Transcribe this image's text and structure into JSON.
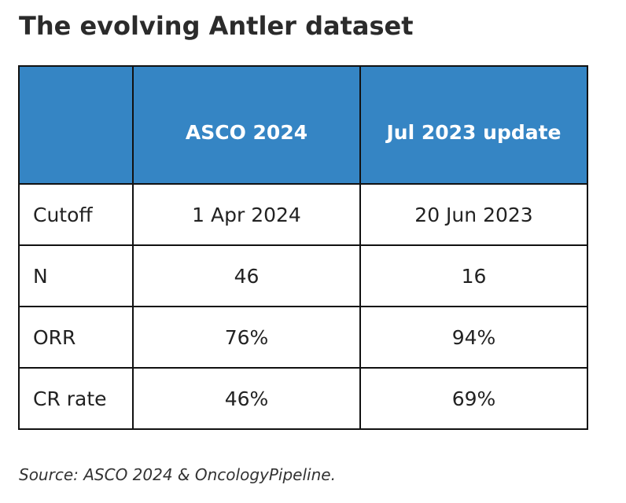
{
  "title": "The evolving Antler dataset",
  "table": {
    "header": {
      "corner": "",
      "columns": [
        "ASCO 2024",
        "Jul 2023 update"
      ]
    },
    "rows": [
      {
        "label": "Cutoff",
        "values": [
          "1 Apr 2024",
          "20 Jun 2023"
        ]
      },
      {
        "label": "N",
        "values": [
          "46",
          "16"
        ]
      },
      {
        "label": "ORR",
        "values": [
          "76%",
          "94%"
        ]
      },
      {
        "label": "CR rate",
        "values": [
          "46%",
          "69%"
        ]
      }
    ]
  },
  "source": "Source: ASCO 2024 & OncologyPipeline.",
  "colors": {
    "header_background": "#3585c4",
    "header_text": "#ffffff",
    "border": "#111111"
  }
}
